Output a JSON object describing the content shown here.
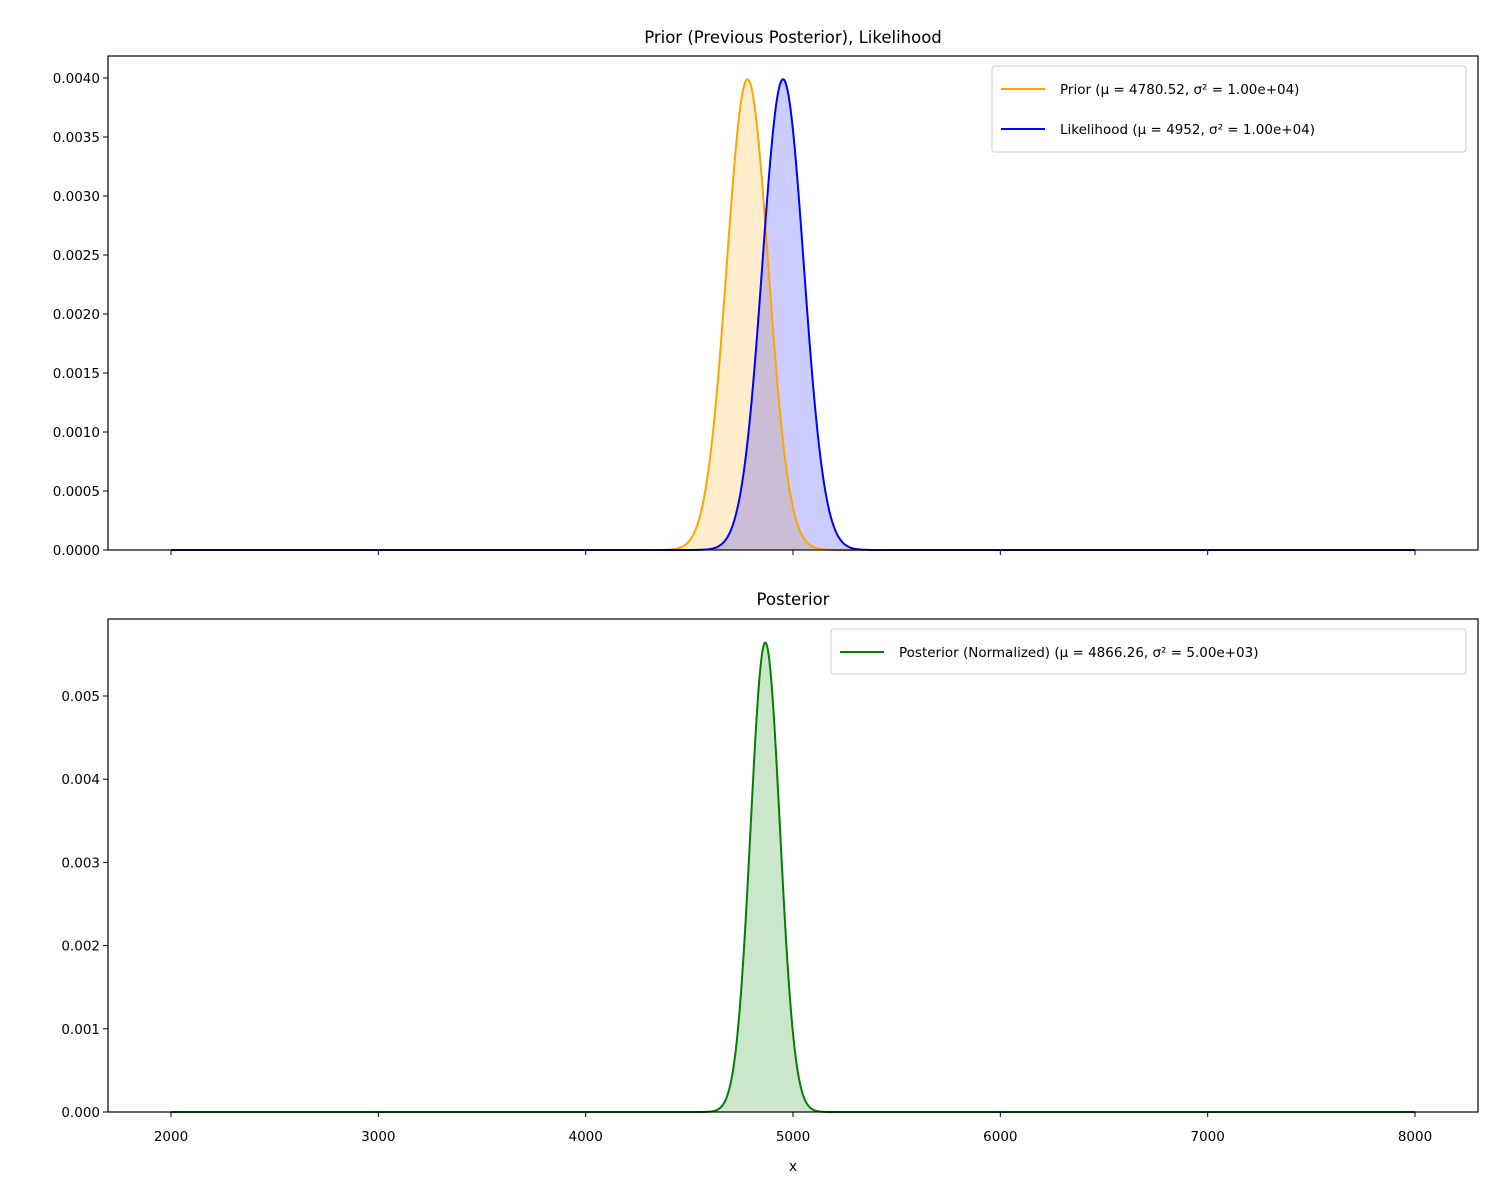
{
  "chart_data": [
    {
      "type": "line",
      "title": "Prior (Previous Posterior), Likelihood",
      "xlabel": "",
      "ylabel": "",
      "xlim": [
        1700,
        8300
      ],
      "ylim": [
        0,
        0.0042
      ],
      "xticks": [
        2000,
        3000,
        4000,
        5000,
        6000,
        7000,
        8000
      ],
      "xtick_labels_visible": false,
      "yticks": [
        0.0,
        0.0005,
        0.001,
        0.0015,
        0.002,
        0.0025,
        0.003,
        0.0035,
        0.004
      ],
      "ytick_labels": [
        "0.0000",
        "0.0005",
        "0.0010",
        "0.0015",
        "0.0020",
        "0.0025",
        "0.0030",
        "0.0035",
        "0.0040"
      ],
      "grid": false,
      "legend_position": "upper right",
      "x_range": [
        2000,
        8000
      ],
      "series": [
        {
          "name": "Prior",
          "legend": "Prior (μ = 4780.52,  σ² = 1.00e+04)",
          "distribution": "normal",
          "mu": 4780.52,
          "variance": 10000,
          "peak": 0.00399,
          "color": "#ffa500",
          "fill": "#ffa500",
          "fill_alpha": 0.2
        },
        {
          "name": "Likelihood",
          "legend": "Likelihood (μ = 4952,  σ² = 1.00e+04)",
          "distribution": "normal",
          "mu": 4952,
          "variance": 10000,
          "peak": 0.00399,
          "color": "#0000ff",
          "fill": "#0000ff",
          "fill_alpha": 0.2
        }
      ]
    },
    {
      "type": "line",
      "title": "Posterior",
      "xlabel": "x",
      "ylabel": "",
      "xlim": [
        1700,
        8300
      ],
      "ylim": [
        0,
        0.0059
      ],
      "xticks": [
        2000,
        3000,
        4000,
        5000,
        6000,
        7000,
        8000
      ],
      "xtick_labels": [
        "2000",
        "3000",
        "4000",
        "5000",
        "6000",
        "7000",
        "8000"
      ],
      "yticks": [
        0.0,
        0.001,
        0.002,
        0.003,
        0.004,
        0.005
      ],
      "ytick_labels": [
        "0.000",
        "0.001",
        "0.002",
        "0.003",
        "0.004",
        "0.005"
      ],
      "grid": false,
      "legend_position": "upper right",
      "x_range": [
        2000,
        8000
      ],
      "series": [
        {
          "name": "Posterior (Normalized)",
          "legend": "Posterior (Normalized) (μ = 4866.26,  σ² = 5.00e+03)",
          "distribution": "normal",
          "mu": 4866.26,
          "variance": 5000,
          "peak": 0.00564,
          "color": "#008000",
          "fill": "#008000",
          "fill_alpha": 0.2
        }
      ]
    }
  ]
}
